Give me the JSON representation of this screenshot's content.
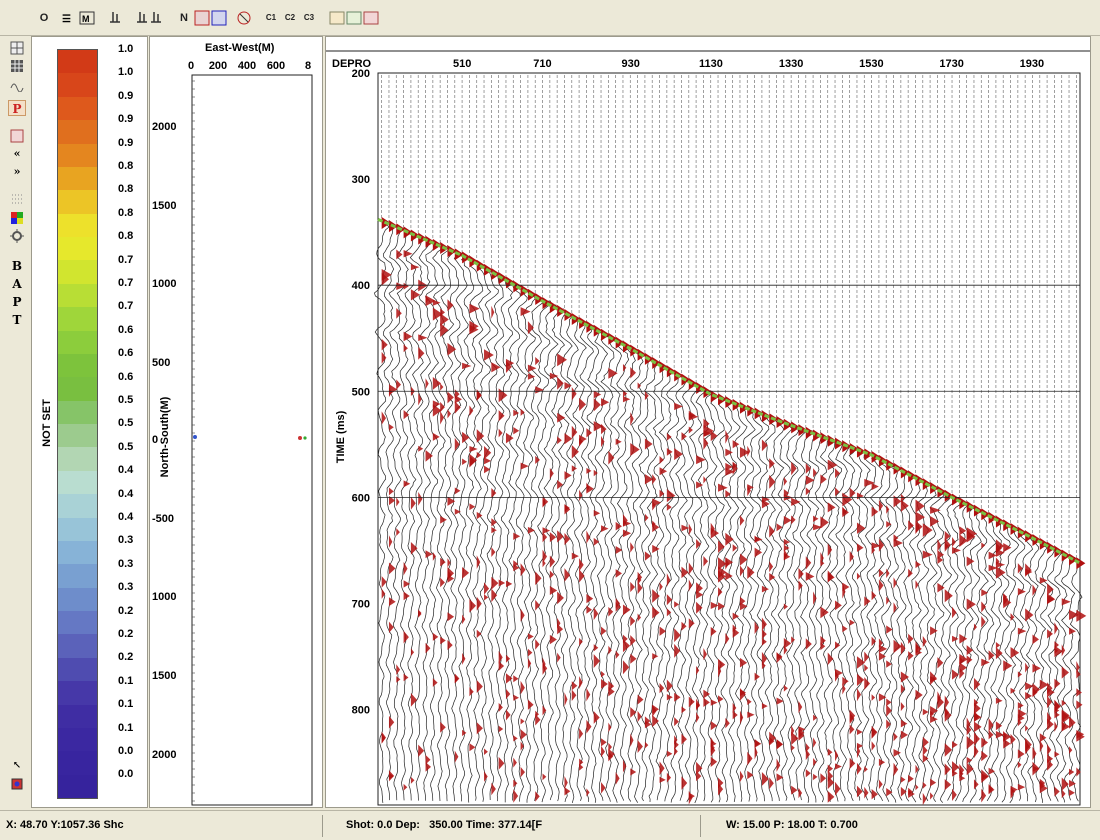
{
  "toolbar": {
    "buttons": [
      {
        "label": "O",
        "name": "toolbar-o-button"
      },
      {
        "label": "N",
        "name": "toolbar-n-button"
      },
      {
        "label": "C1",
        "name": "toolbar-c1-button"
      },
      {
        "label": "C2",
        "name": "toolbar-c2-button"
      },
      {
        "label": "C3",
        "name": "toolbar-c3-button"
      }
    ]
  },
  "left_tools": {
    "letters": [
      "B",
      "A",
      "P",
      "T"
    ],
    "p_label": "P"
  },
  "colorbar": {
    "title": "NOT SET",
    "labels": [
      "1.0",
      "1.0",
      "0.9",
      "0.9",
      "0.9",
      "0.8",
      "0.8",
      "0.8",
      "0.8",
      "0.7",
      "0.7",
      "0.7",
      "0.6",
      "0.6",
      "0.6",
      "0.5",
      "0.5",
      "0.5",
      "0.4",
      "0.4",
      "0.4",
      "0.3",
      "0.3",
      "0.3",
      "0.2",
      "0.2",
      "0.2",
      "0.1",
      "0.1",
      "0.1",
      "0.0",
      "0.0"
    ],
    "colors": [
      "#d23a17",
      "#d8461a",
      "#de591c",
      "#e06f1e",
      "#e4861f",
      "#e8a421",
      "#ecc526",
      "#ede12b",
      "#e6e82c",
      "#d1e52f",
      "#b8de35",
      "#9fd63a",
      "#8ccd3c",
      "#7dc33c",
      "#79bf40",
      "#86c468",
      "#9ccb8e",
      "#b2d6b3",
      "#b9ddd0",
      "#a9d2d6",
      "#98c4d8",
      "#87b3d7",
      "#79a0d1",
      "#6e8dcb",
      "#6578c4",
      "#5b62ba",
      "#4f4cb0",
      "#4638a8",
      "#3f2da3",
      "#3b28a1",
      "#38259f",
      "#36239d"
    ]
  },
  "map": {
    "title": "East-West(M)",
    "x_ticks": [
      "0",
      "200",
      "400",
      "600",
      "8"
    ],
    "y_label": "North-South(M)",
    "y_ticks": [
      "2000",
      "1500",
      "1000",
      "500",
      "0",
      "-500",
      "1000",
      "1500",
      "2000"
    ]
  },
  "chart_data": {
    "type": "seismic-wiggle",
    "xlabel": "DEPRO",
    "ylabel": "TIME (ms)",
    "x_ticks": [
      510,
      710,
      930,
      1130,
      1330,
      1530,
      1730,
      1930
    ],
    "x_range": [
      300,
      2050
    ],
    "y_ticks": [
      200,
      300,
      400,
      500,
      600,
      700,
      800
    ],
    "y_range": [
      200,
      890
    ],
    "grid_times": [
      400,
      500,
      600
    ],
    "first_break_picks": [
      {
        "depth": 300,
        "time": 338
      },
      {
        "depth": 510,
        "time": 372
      },
      {
        "depth": 710,
        "time": 415
      },
      {
        "depth": 930,
        "time": 460
      },
      {
        "depth": 1130,
        "time": 503
      },
      {
        "depth": 1300,
        "time": 528
      },
      {
        "depth": 1530,
        "time": 560
      },
      {
        "depth": 1730,
        "time": 600
      },
      {
        "depth": 1930,
        "time": 638
      },
      {
        "depth": 2050,
        "time": 662
      }
    ],
    "colors": {
      "fill": "#b01010",
      "pick": "#7ac142",
      "trace": "#222222"
    }
  },
  "status": {
    "cursor": "X: 48.70 Y:1057.36 Shc",
    "shot": "Shot: 0.0 Dep:   350.00 Time: 377.14[F",
    "params": "W: 15.00 P: 18.00 T: 0.700"
  }
}
